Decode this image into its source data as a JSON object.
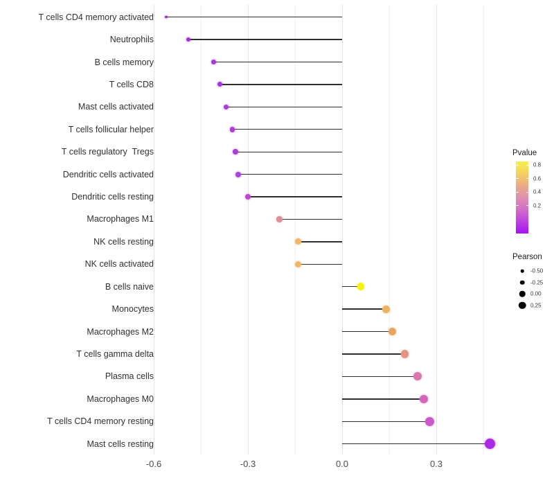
{
  "chart_data": {
    "type": "lollipop",
    "orientation": "horizontal",
    "title": "",
    "xlabel": "",
    "ylabel": "",
    "baseline_value": 0,
    "stick_color": "#2e2e2e",
    "x_axis": {
      "ticks": [
        {
          "label": "-0.6",
          "value": -0.6
        },
        {
          "label": "-0.3",
          "value": -0.3
        },
        {
          "label": "0.0",
          "value": 0.0
        },
        {
          "label": "0.3",
          "value": 0.3
        }
      ],
      "minor_tick_values": [
        -0.45,
        -0.15,
        0.15,
        0.45
      ],
      "range": [
        -0.615,
        0.525
      ]
    },
    "points": [
      {
        "label": "T cells CD4 memory activated",
        "pearson": -0.56,
        "color": "#8d28d0",
        "diameter": 3.5
      },
      {
        "label": "Neutrophils",
        "pearson": -0.49,
        "color": "#a233dd",
        "diameter": 6
      },
      {
        "label": "B cells memory",
        "pearson": -0.41,
        "color": "#a636de",
        "diameter": 7
      },
      {
        "label": "T cells CD8",
        "pearson": -0.39,
        "color": "#a636de",
        "diameter": 7
      },
      {
        "label": "Mast cells activated",
        "pearson": -0.37,
        "color": "#a83adc",
        "diameter": 7.5
      },
      {
        "label": "T cells follicular helper",
        "pearson": -0.35,
        "color": "#a93cdb",
        "diameter": 7.5
      },
      {
        "label": "T cells regulatory  Tregs",
        "pearson": -0.34,
        "color": "#aa3eda",
        "diameter": 7.5
      },
      {
        "label": "Dendritic cells activated",
        "pearson": -0.33,
        "color": "#ad42d7",
        "diameter": 8
      },
      {
        "label": "Dendritic cells resting",
        "pearson": -0.3,
        "color": "#bb49cf",
        "diameter": 8
      },
      {
        "label": "Macrophages M1",
        "pearson": -0.2,
        "color": "#e08e93",
        "diameter": 8.5
      },
      {
        "label": "NK cells resting",
        "pearson": -0.14,
        "color": "#efb868",
        "diameter": 9
      },
      {
        "label": "NK cells activated",
        "pearson": -0.14,
        "color": "#efb868",
        "diameter": 9
      },
      {
        "label": "B cells naive",
        "pearson": 0.06,
        "color": "#f6f20b",
        "diameter": 10.5
      },
      {
        "label": "Monocytes",
        "pearson": 0.14,
        "color": "#edb166",
        "diameter": 11
      },
      {
        "label": "Macrophages M2",
        "pearson": 0.16,
        "color": "#e9a560",
        "diameter": 11
      },
      {
        "label": "T cells gamma delta",
        "pearson": 0.2,
        "color": "#e6947f",
        "diameter": 11.5
      },
      {
        "label": "Plasma cells",
        "pearson": 0.24,
        "color": "#d978ac",
        "diameter": 12
      },
      {
        "label": "Macrophages M0",
        "pearson": 0.26,
        "color": "#d266bb",
        "diameter": 12.5
      },
      {
        "label": "T cells CD4 memory resting",
        "pearson": 0.28,
        "color": "#ca5ac6",
        "diameter": 13
      },
      {
        "label": "Mast cells resting",
        "pearson": 0.47,
        "color": "#ab28e4",
        "diameter": 15
      }
    ]
  },
  "legend": {
    "pvalue": {
      "title": "Pvalue",
      "gradient": [
        "#f7f04c",
        "#f5d05f",
        "#eca987",
        "#e090ae",
        "#d26ec7",
        "#bc41e2",
        "#a513f0"
      ],
      "ticks": [
        {
          "label": "0.8",
          "offset_pct": 5
        },
        {
          "label": "0.6",
          "offset_pct": 24
        },
        {
          "label": "0.4",
          "offset_pct": 42.5
        },
        {
          "label": "0.2",
          "offset_pct": 61.5
        }
      ]
    },
    "pearson": {
      "title": "Pearson",
      "items": [
        {
          "label": "-0.50",
          "diameter": 4.5
        },
        {
          "label": "-0.25",
          "diameter": 6.5
        },
        {
          "label": "0.00",
          "diameter": 8.5
        },
        {
          "label": "0.25",
          "diameter": 10.5
        }
      ]
    }
  }
}
